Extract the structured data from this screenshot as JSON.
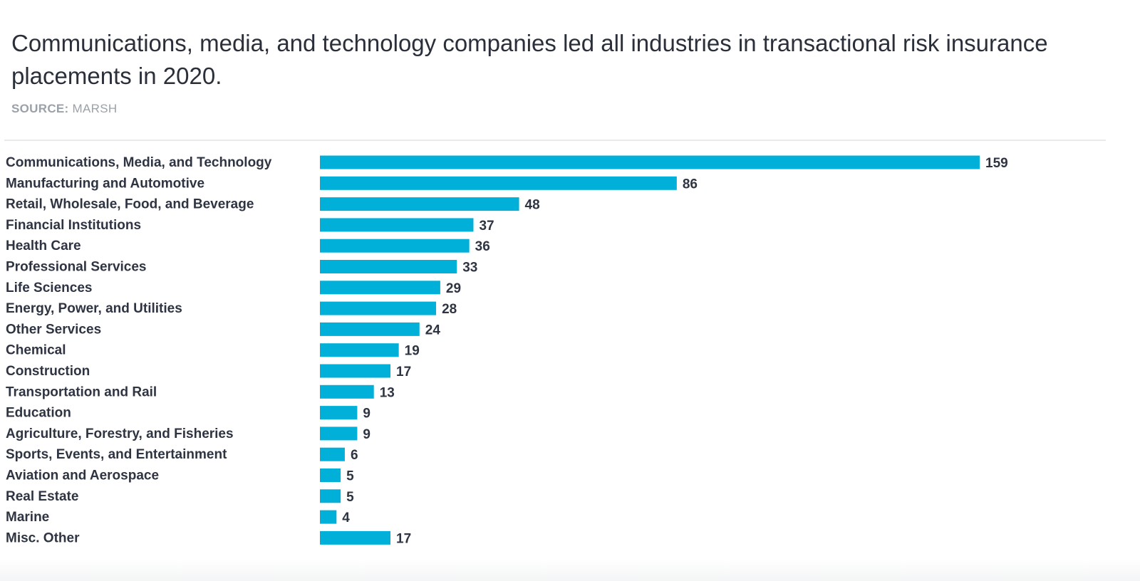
{
  "header": {
    "title": "Communications, media, and technology companies led all industries in transactional risk insurance placements in 2020.",
    "source_label": "SOURCE:",
    "source_value": "MARSH"
  },
  "colors": {
    "bar": "#00b0d8",
    "text": "#2f3442",
    "source": "#9aa1a8"
  },
  "chart_data": {
    "type": "bar",
    "orientation": "horizontal",
    "title": "Communications, media, and technology companies led all industries in transactional risk insurance placements in 2020.",
    "categories": [
      "Communications, Media, and Technology",
      "Manufacturing and Automotive",
      "Retail, Wholesale, Food, and Beverage",
      "Financial Institutions",
      "Health Care",
      "Professional Services",
      "Life Sciences",
      "Energy, Power, and Utilities",
      "Other Services",
      "Chemical",
      "Construction",
      "Transportation and Rail",
      "Education",
      "Agriculture, Forestry, and Fisheries",
      "Sports, Events, and Entertainment",
      "Aviation and Aerospace",
      "Real Estate",
      "Marine",
      "Misc. Other"
    ],
    "values": [
      159,
      86,
      48,
      37,
      36,
      33,
      29,
      28,
      24,
      19,
      17,
      13,
      9,
      9,
      6,
      5,
      5,
      4,
      17
    ],
    "data_labels": true,
    "grid": false,
    "legend": "none",
    "xlim": [
      0,
      159
    ]
  }
}
